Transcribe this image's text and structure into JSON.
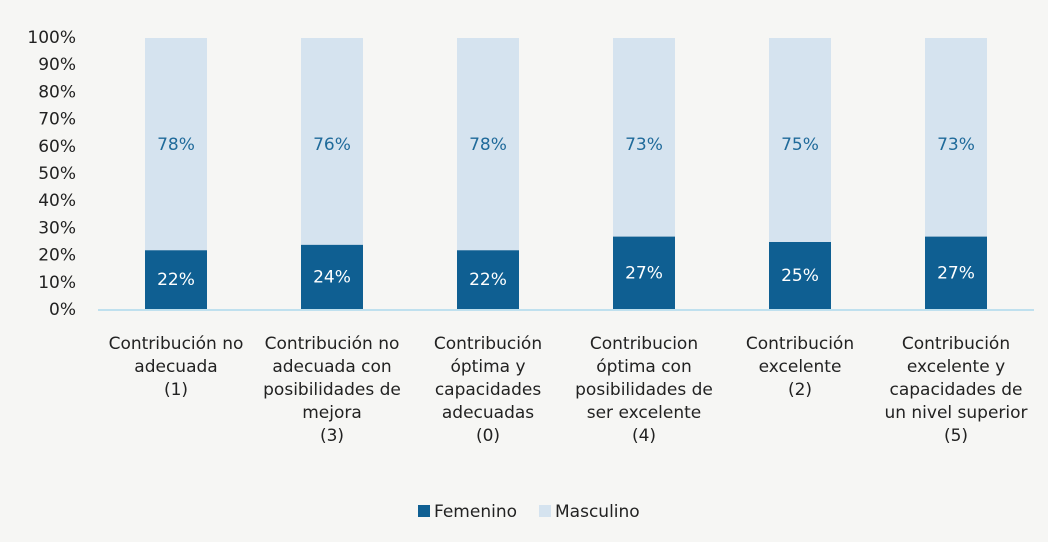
{
  "chart_data": {
    "type": "stacked_bar",
    "categories": [
      [
        "Contribución no",
        "adecuada",
        "(1)"
      ],
      [
        "Contribución no",
        "adecuada con",
        "posibilidades de",
        "mejora",
        "(3)"
      ],
      [
        "Contribución",
        "óptima y",
        "capacidades",
        "adecuadas",
        "(0)"
      ],
      [
        "Contribucion",
        "óptima con",
        "posibilidades de",
        "ser excelente",
        "(4)"
      ],
      [
        "Contribución",
        "excelente",
        "(2)"
      ],
      [
        "Contribución",
        "excelente y",
        "capacidades de",
        "un nivel superior",
        "(5)"
      ]
    ],
    "series": [
      {
        "name": "Femenino",
        "color": "#0f5f92",
        "values": [
          22,
          24,
          22,
          27,
          25,
          27
        ],
        "value_labels": [
          "22%",
          "24%",
          "22%",
          "27%",
          "25%",
          "27%"
        ]
      },
      {
        "name": "Masculino",
        "color": "#d5e3ef",
        "values": [
          78,
          76,
          78,
          73,
          75,
          73
        ],
        "value_labels": [
          "78%",
          "76%",
          "78%",
          "73%",
          "75%",
          "73%"
        ]
      }
    ],
    "ylim": [
      0,
      100
    ],
    "yticks": [
      {
        "value": 0,
        "label": "0%"
      },
      {
        "value": 10,
        "label": "10%"
      },
      {
        "value": 20,
        "label": "20%"
      },
      {
        "value": 30,
        "label": "30%"
      },
      {
        "value": 40,
        "label": "40%"
      },
      {
        "value": 50,
        "label": "50%"
      },
      {
        "value": 60,
        "label": "60%"
      },
      {
        "value": 70,
        "label": "70%"
      },
      {
        "value": 80,
        "label": "80%"
      },
      {
        "value": 90,
        "label": "90%"
      },
      {
        "value": 100,
        "label": "100%"
      }
    ],
    "legend": "bottom"
  }
}
